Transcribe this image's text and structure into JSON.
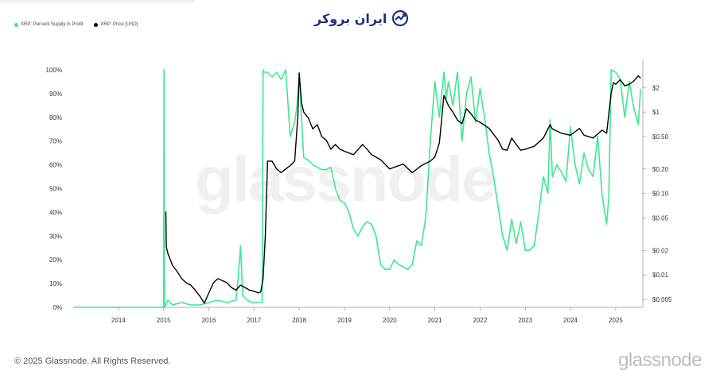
{
  "logo": {
    "text": "ایران بروکر"
  },
  "legend": [
    {
      "label": "XRP: Percent Supply in Profit",
      "color": "#3ce88c"
    },
    {
      "label": "XRP: Price [USD]",
      "color": "#000000"
    }
  ],
  "watermark": "glassnode",
  "footer": {
    "copyright": "© 2025 Glassnode. All Rights Reserved.",
    "brand": "glassnode"
  },
  "chart_data": {
    "type": "line",
    "x_tick_labels": [
      "2014",
      "2015",
      "2016",
      "2017",
      "2018",
      "2019",
      "2020",
      "2021",
      "2022",
      "2023",
      "2024",
      "2025"
    ],
    "xlim": [
      2013.0,
      2025.6
    ],
    "y_left_ticks": [
      "0%",
      "10%",
      "20%",
      "30%",
      "40%",
      "50%",
      "60%",
      "70%",
      "80%",
      "90%",
      "100%"
    ],
    "ylim_left": [
      0,
      100
    ],
    "y_right_ticks": [
      "$0.005",
      "$0.01",
      "$0.02",
      "$0.05",
      "$0.10",
      "$0.20",
      "$0.50",
      "$1",
      "$2"
    ],
    "y_right_scale": "log",
    "ylim_right": [
      0.004,
      3.3
    ],
    "grid": false,
    "series": [
      {
        "name": "XRP: Percent Supply in Profit",
        "axis": "left",
        "color": "#3ce88c",
        "x": [
          2013.0,
          2014.5,
          2015.0,
          2015.01,
          2015.02,
          2015.05,
          2015.1,
          2015.2,
          2015.4,
          2015.6,
          2015.8,
          2016.0,
          2016.2,
          2016.4,
          2016.6,
          2016.65,
          2016.7,
          2016.75,
          2016.85,
          2016.95,
          2017.1,
          2017.18,
          2017.2,
          2017.22,
          2017.3,
          2017.4,
          2017.5,
          2017.6,
          2017.7,
          2017.8,
          2017.9,
          2017.95,
          2018.0,
          2018.05,
          2018.1,
          2018.2,
          2018.3,
          2018.4,
          2018.5,
          2018.6,
          2018.7,
          2018.8,
          2018.9,
          2019.0,
          2019.1,
          2019.2,
          2019.3,
          2019.4,
          2019.5,
          2019.6,
          2019.7,
          2019.8,
          2019.9,
          2020.0,
          2020.1,
          2020.2,
          2020.3,
          2020.4,
          2020.5,
          2020.6,
          2020.7,
          2020.8,
          2020.9,
          2021.0,
          2021.1,
          2021.2,
          2021.25,
          2021.3,
          2021.4,
          2021.5,
          2021.6,
          2021.7,
          2021.8,
          2021.9,
          2022.0,
          2022.1,
          2022.2,
          2022.3,
          2022.4,
          2022.5,
          2022.6,
          2022.7,
          2022.8,
          2022.9,
          2023.0,
          2023.1,
          2023.2,
          2023.3,
          2023.4,
          2023.5,
          2023.55,
          2023.6,
          2023.7,
          2023.8,
          2023.9,
          2024.0,
          2024.1,
          2024.2,
          2024.3,
          2024.4,
          2024.5,
          2024.6,
          2024.7,
          2024.8,
          2024.85,
          2024.9,
          2025.0,
          2025.1,
          2025.2,
          2025.3,
          2025.4,
          2025.5,
          2025.55
        ],
        "y": [
          0,
          0,
          0,
          100,
          0,
          1,
          3,
          1,
          2,
          1,
          1,
          2,
          3,
          2,
          3,
          12,
          26,
          5,
          3,
          2,
          2,
          2,
          100,
          99,
          99,
          97,
          99,
          96,
          100,
          72,
          78,
          85,
          99,
          80,
          63,
          62,
          60,
          59,
          58,
          58,
          59,
          50,
          45,
          44,
          40,
          33,
          30,
          34,
          36,
          35,
          30,
          18,
          16,
          16,
          20,
          18,
          17,
          16,
          18,
          28,
          26,
          38,
          70,
          95,
          80,
          99,
          88,
          95,
          85,
          99,
          70,
          90,
          97,
          78,
          92,
          80,
          65,
          55,
          42,
          30,
          24,
          37,
          27,
          36,
          24,
          24,
          26,
          40,
          55,
          48,
          79,
          55,
          60,
          57,
          53,
          76,
          60,
          52,
          65,
          58,
          55,
          72,
          47,
          35,
          47,
          100,
          99,
          96,
          80,
          95,
          84,
          77,
          92
        ]
      },
      {
        "name": "XRP: Price [USD]",
        "axis": "right",
        "color": "#000000",
        "x": [
          2015.05,
          2015.06,
          2015.1,
          2015.2,
          2015.3,
          2015.4,
          2015.5,
          2015.6,
          2015.7,
          2015.8,
          2015.9,
          2016.0,
          2016.1,
          2016.2,
          2016.3,
          2016.4,
          2016.5,
          2016.6,
          2016.7,
          2016.8,
          2016.9,
          2017.0,
          2017.1,
          2017.15,
          2017.2,
          2017.25,
          2017.3,
          2017.4,
          2017.5,
          2017.6,
          2017.7,
          2017.8,
          2017.9,
          2017.97,
          2018.0,
          2018.05,
          2018.1,
          2018.2,
          2018.3,
          2018.4,
          2018.5,
          2018.6,
          2018.7,
          2018.8,
          2018.9,
          2019.0,
          2019.2,
          2019.4,
          2019.5,
          2019.6,
          2019.8,
          2020.0,
          2020.2,
          2020.3,
          2020.5,
          2020.7,
          2020.9,
          2021.0,
          2021.1,
          2021.2,
          2021.3,
          2021.4,
          2021.5,
          2021.6,
          2021.7,
          2021.8,
          2021.9,
          2022.0,
          2022.2,
          2022.4,
          2022.5,
          2022.6,
          2022.7,
          2022.8,
          2022.9,
          2023.0,
          2023.2,
          2023.4,
          2023.55,
          2023.6,
          2023.8,
          2024.0,
          2024.2,
          2024.3,
          2024.5,
          2024.7,
          2024.8,
          2024.9,
          2024.95,
          2025.0,
          2025.1,
          2025.2,
          2025.3,
          2025.4,
          2025.5,
          2025.55
        ],
        "y": [
          0.06,
          0.022,
          0.018,
          0.013,
          0.011,
          0.009,
          0.008,
          0.0075,
          0.0065,
          0.0055,
          0.0045,
          0.006,
          0.008,
          0.009,
          0.0085,
          0.008,
          0.007,
          0.0065,
          0.0075,
          0.007,
          0.0065,
          0.0063,
          0.006,
          0.0062,
          0.009,
          0.03,
          0.25,
          0.25,
          0.2,
          0.18,
          0.2,
          0.22,
          0.25,
          0.9,
          3.0,
          1.3,
          1.0,
          0.85,
          0.62,
          0.7,
          0.5,
          0.45,
          0.35,
          0.4,
          0.35,
          0.33,
          0.3,
          0.4,
          0.35,
          0.3,
          0.26,
          0.2,
          0.22,
          0.23,
          0.18,
          0.22,
          0.25,
          0.28,
          0.42,
          1.6,
          1.2,
          1.0,
          0.8,
          0.72,
          1.1,
          0.95,
          0.8,
          0.75,
          0.63,
          0.45,
          0.35,
          0.34,
          0.48,
          0.4,
          0.34,
          0.35,
          0.38,
          0.48,
          0.7,
          0.62,
          0.55,
          0.52,
          0.63,
          0.52,
          0.48,
          0.6,
          0.55,
          1.7,
          2.3,
          2.2,
          2.5,
          2.1,
          2.2,
          2.4,
          2.8,
          2.6
        ]
      }
    ]
  }
}
